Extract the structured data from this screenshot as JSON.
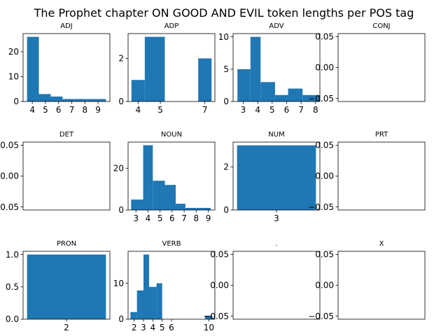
{
  "title": "The Prophet chapter ON GOOD AND EVIL token lengths per POS tag",
  "colors": {
    "bar": "#1f77b4",
    "axis": "#000000"
  },
  "chart_data": [
    {
      "type": "bar",
      "title": "ADJ",
      "bars": [
        {
          "x0": 3.6,
          "x1": 4.5,
          "value": 26
        },
        {
          "x0": 4.5,
          "x1": 5.4,
          "value": 3
        },
        {
          "x0": 5.4,
          "x1": 6.3,
          "value": 2
        },
        {
          "x0": 6.3,
          "x1": 7.2,
          "value": 1
        },
        {
          "x0": 7.2,
          "x1": 8.1,
          "value": 1
        },
        {
          "x0": 8.1,
          "x1": 9.0,
          "value": 1
        },
        {
          "x0": 9.0,
          "x1": 9.6,
          "value": 1
        }
      ],
      "xlim": [
        3.3,
        9.9
      ],
      "ylim": [
        0,
        27.3
      ],
      "xticks": [
        4,
        5,
        6,
        7,
        8,
        9
      ],
      "yticks": [
        0,
        10,
        20
      ]
    },
    {
      "type": "bar",
      "title": "ADP",
      "bars": [
        {
          "x0": 3.7,
          "x1": 4.3,
          "value": 1
        },
        {
          "x0": 4.3,
          "x1": 5.2,
          "value": 3
        },
        {
          "x0": 6.7,
          "x1": 7.3,
          "value": 2
        }
      ],
      "xlim": [
        3.55,
        7.45
      ],
      "ylim": [
        0,
        3.15
      ],
      "xticks": [
        4,
        5,
        7
      ],
      "yticks": [
        0,
        2
      ]
    },
    {
      "type": "bar",
      "title": "ADV",
      "bars": [
        {
          "x0": 2.6,
          "x1": 3.5,
          "value": 5
        },
        {
          "x0": 3.5,
          "x1": 4.2,
          "value": 10
        },
        {
          "x0": 4.2,
          "x1": 5.2,
          "value": 3
        },
        {
          "x0": 5.2,
          "x1": 6.1,
          "value": 1
        },
        {
          "x0": 6.1,
          "x1": 7.1,
          "value": 2
        },
        {
          "x0": 7.1,
          "x1": 8.3,
          "value": 1
        }
      ],
      "xlim": [
        2.3,
        8.3
      ],
      "ylim": [
        0,
        10.5
      ],
      "xticks": [
        3,
        4,
        5,
        6,
        7,
        8
      ],
      "yticks": [
        0,
        5,
        10
      ]
    },
    {
      "type": "bar",
      "title": "CONJ",
      "bars": [],
      "xlim": [
        0,
        1
      ],
      "ylim": [
        -0.055,
        0.055
      ],
      "xticks": [],
      "yticks": [
        0.05,
        0.0,
        -0.05
      ],
      "ytick_labels": [
        "0.05",
        "0.00",
        "−0.05"
      ]
    },
    {
      "type": "bar",
      "title": "DET",
      "bars": [],
      "xlim": [
        0,
        1
      ],
      "ylim": [
        -0.055,
        0.055
      ],
      "xticks": [],
      "yticks": [
        0.05,
        0.0,
        -0.05
      ],
      "ytick_labels": [
        "0.05",
        "0.00",
        "−0.05"
      ]
    },
    {
      "type": "bar",
      "title": "NOUN",
      "bars": [
        {
          "x0": 2.6,
          "x1": 3.6,
          "value": 5
        },
        {
          "x0": 3.6,
          "x1": 4.4,
          "value": 31
        },
        {
          "x0": 4.4,
          "x1": 5.4,
          "value": 14
        },
        {
          "x0": 5.4,
          "x1": 6.3,
          "value": 12
        },
        {
          "x0": 6.3,
          "x1": 7.1,
          "value": 3
        },
        {
          "x0": 7.1,
          "x1": 8.0,
          "value": 1
        },
        {
          "x0": 8.0,
          "x1": 9.2,
          "value": 1
        }
      ],
      "xlim": [
        2.35,
        9.55
      ],
      "ylim": [
        0,
        32.5
      ],
      "xticks": [
        3,
        4,
        5,
        6,
        7,
        8,
        9
      ],
      "yticks": [
        0,
        20
      ]
    },
    {
      "type": "bar",
      "title": "NUM",
      "bars": [
        {
          "x0": 2.5,
          "x1": 3.5,
          "value": 3
        }
      ],
      "xlim": [
        2.45,
        3.55
      ],
      "ylim": [
        0,
        3.15
      ],
      "xticks": [
        3
      ],
      "yticks": [
        0,
        2
      ]
    },
    {
      "type": "bar",
      "title": "PRT",
      "bars": [],
      "xlim": [
        0,
        1
      ],
      "ylim": [
        -0.055,
        0.055
      ],
      "xticks": [],
      "yticks": [
        0.05,
        0.0,
        -0.05
      ],
      "ytick_labels": [
        "0.05",
        "0.00",
        "−0.05"
      ]
    },
    {
      "type": "bar",
      "title": "PRON",
      "bars": [
        {
          "x0": 1.5,
          "x1": 2.5,
          "value": 1
        }
      ],
      "xlim": [
        1.45,
        2.55
      ],
      "ylim": [
        0,
        1.05
      ],
      "xticks": [
        2
      ],
      "yticks": [
        0,
        0.5,
        1.0
      ],
      "ytick_labels": [
        "0.0",
        "0.5",
        "1.0"
      ]
    },
    {
      "type": "bar",
      "title": "VERB",
      "bars": [
        {
          "x0": 1.6,
          "x1": 2.3,
          "value": 2
        },
        {
          "x0": 2.3,
          "x1": 3.0,
          "value": 8
        },
        {
          "x0": 3.0,
          "x1": 3.6,
          "value": 18
        },
        {
          "x0": 3.6,
          "x1": 4.4,
          "value": 9
        },
        {
          "x0": 4.4,
          "x1": 5.0,
          "value": 10
        },
        {
          "x0": 9.6,
          "x1": 10.4,
          "value": 1
        }
      ],
      "xlim": [
        1.35,
        10.65
      ],
      "ylim": [
        0,
        18.9
      ],
      "xticks": [
        2,
        3,
        4,
        5,
        6,
        10
      ],
      "yticks": [
        0,
        10
      ]
    },
    {
      "type": "bar",
      "title": ".",
      "bars": [],
      "xlim": [
        0,
        1
      ],
      "ylim": [
        -0.055,
        0.055
      ],
      "xticks": [],
      "yticks": [
        0.05,
        0.0,
        -0.05
      ],
      "ytick_labels": [
        "0.05",
        "0.00",
        "−0.05"
      ]
    },
    {
      "type": "bar",
      "title": "X",
      "bars": [],
      "xlim": [
        0,
        1
      ],
      "ylim": [
        -0.055,
        0.055
      ],
      "xticks": [],
      "yticks": [
        0.05,
        0.0,
        -0.05
      ],
      "ytick_labels": [
        "0.05",
        "0.00",
        "−0.05"
      ]
    }
  ]
}
